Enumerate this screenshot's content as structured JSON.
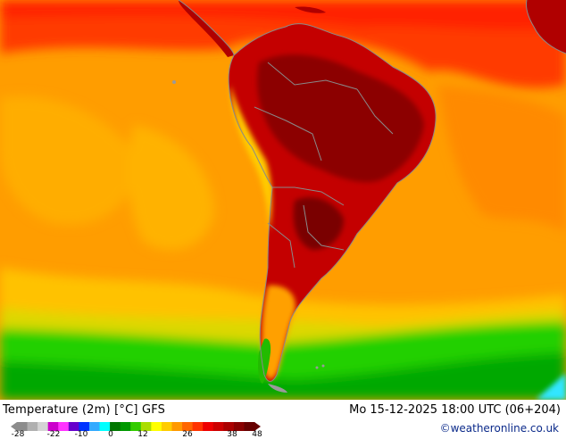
{
  "map": {
    "title": "Temperature (2m) [°C] GFS",
    "timestamp": "Mo 15-12-2025 18:00 UTC (06+204)",
    "credit": "©weatheronline.co.uk",
    "legend": {
      "ticks": [
        "-28",
        "-22",
        "-10",
        "0",
        "12",
        "26",
        "38",
        "48"
      ],
      "colors": [
        "#8c8c8c",
        "#b0b0b0",
        "#d4d4d4",
        "#cc00cc",
        "#ff33ff",
        "#6600cc",
        "#0033ff",
        "#33aaff",
        "#00ffff",
        "#007700",
        "#009900",
        "#33cc00",
        "#aadd00",
        "#ffff00",
        "#ffcc00",
        "#ff9900",
        "#ff6600",
        "#ff3300",
        "#ee0000",
        "#cc0000",
        "#aa0000",
        "#880000",
        "#660000"
      ]
    },
    "palette": {
      "ocean_warm": "#ff9a00",
      "ocean_hot": "#ff5a00",
      "land_hot": "#b80000",
      "land_extreme": "#8a0000",
      "cool_band": "#22cc00",
      "cold_band": "#00aa00",
      "ice": "#33e0ff",
      "borders": "#888888"
    }
  }
}
